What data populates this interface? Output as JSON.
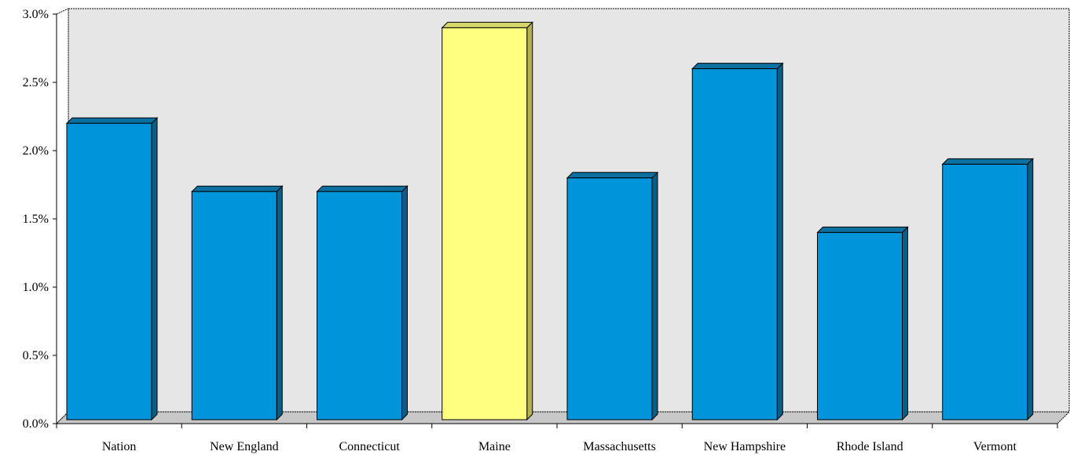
{
  "chart_data": {
    "type": "bar",
    "title": "",
    "xlabel": "",
    "ylabel": "",
    "categories": [
      "Nation",
      "New England",
      "Connecticut",
      "Maine",
      "Massachusetts",
      "New Hampshire",
      "Rhode Island",
      "Vermont"
    ],
    "values": [
      2.2,
      1.7,
      1.7,
      2.9,
      1.8,
      2.6,
      1.4,
      1.9
    ],
    "value_unit": "%",
    "ylim": [
      0,
      3.0
    ],
    "y_ticks": [
      "0.0%",
      "0.5%",
      "1.0%",
      "1.5%",
      "2.0%",
      "2.5%",
      "3.0%"
    ],
    "y_tick_values": [
      0,
      0.5,
      1.0,
      1.5,
      2.0,
      2.5,
      3.0
    ],
    "highlight_category": "Maine",
    "grid": false,
    "legend": "none",
    "style": "3d",
    "colors": {
      "bar": "#0095DB",
      "bar_side": "#0A5E86",
      "bar_top": "#0B6FA0",
      "highlight": "#FFFF80",
      "highlight_side": "#B2B252",
      "highlight_top": "#D6D66A",
      "plot_wall": "#E6E6E6",
      "floor": "#C8C8C8",
      "outline": "#000000"
    }
  }
}
